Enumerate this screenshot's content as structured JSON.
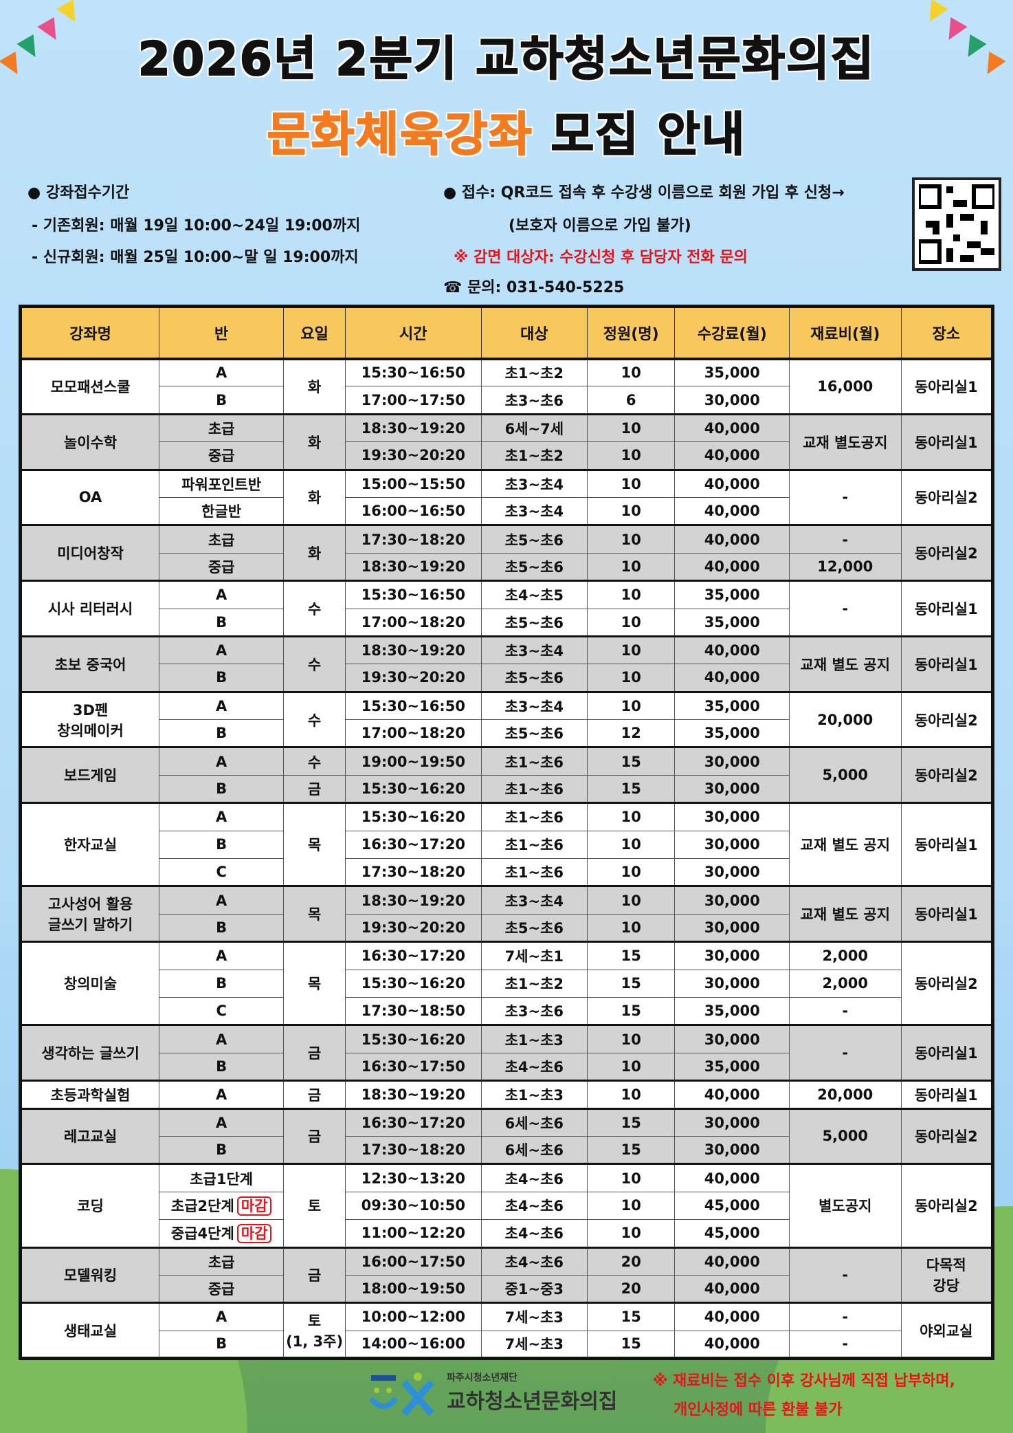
{
  "title": {
    "line1": "2026년 2분기 교하청소년문화의집",
    "highlight": "문화체육강좌",
    "rest": "모집 안내"
  },
  "info": {
    "period_heading": "● 강좌접수기간",
    "existing": "- 기존회원: 매월 19일 10:00~24일 19:00까지",
    "new": "- 신규회원: 매월 25일 10:00~말 일 19:00까지",
    "apply": "● 접수: QR코드 접속 후 수강생 이름으로 회원 가입 후 신청→",
    "apply_note": "(보호자 이름으로 가입 불가)",
    "discount": "※ 감면 대상자: 수강신청 후 담당자 전화 문의",
    "contact": "☎ 문의: 031-540-5225"
  },
  "colors": {
    "header": "#f8c85c",
    "gray_row": "#d3d3d3",
    "accent_orange": "#f47a20",
    "red": "#e8121b"
  },
  "table": {
    "headers": [
      "강좌명",
      "반",
      "요일",
      "시간",
      "대상",
      "정원(명)",
      "수강료(월)",
      "재료비(월)",
      "장소"
    ],
    "closed_label": "마감",
    "groups": [
      {
        "name": "모모패션스쿨",
        "day": "화",
        "material": "16,000",
        "place": "동아리실1",
        "rows": [
          [
            "A",
            "15:30~16:50",
            "초1~초2",
            "10",
            "35,000"
          ],
          [
            "B",
            "17:00~17:50",
            "초3~초6",
            "6",
            "30,000"
          ]
        ]
      },
      {
        "name": "놀이수학",
        "day": "화",
        "material": "교재 별도공지",
        "place": "동아리실1",
        "rows": [
          [
            "초급",
            "18:30~19:20",
            "6세~7세",
            "10",
            "40,000"
          ],
          [
            "중급",
            "19:30~20:20",
            "초1~초2",
            "10",
            "40,000"
          ]
        ]
      },
      {
        "name": "OA",
        "day": "화",
        "material": "-",
        "place": "동아리실2",
        "rows": [
          [
            "파워포인트반",
            "15:00~15:50",
            "초3~초4",
            "10",
            "40,000"
          ],
          [
            "한글반",
            "16:00~16:50",
            "초3~초4",
            "10",
            "40,000"
          ]
        ]
      },
      {
        "name": "미디어창작",
        "day": "화",
        "materials": [
          "-",
          "12,000"
        ],
        "place": "동아리실2",
        "rows": [
          [
            "초급",
            "17:30~18:20",
            "초5~초6",
            "10",
            "40,000"
          ],
          [
            "중급",
            "18:30~19:20",
            "초5~초6",
            "10",
            "40,000"
          ]
        ]
      },
      {
        "name": "시사 리터러시",
        "day": "수",
        "material": "-",
        "place": "동아리실1",
        "rows": [
          [
            "A",
            "15:30~16:50",
            "초4~초5",
            "10",
            "35,000"
          ],
          [
            "B",
            "17:00~18:20",
            "초5~초6",
            "10",
            "35,000"
          ]
        ]
      },
      {
        "name": "초보 중국어",
        "day": "수",
        "material": "교재 별도 공지",
        "place": "동아리실1",
        "rows": [
          [
            "A",
            "18:30~19:20",
            "초3~초4",
            "10",
            "40,000"
          ],
          [
            "B",
            "19:30~20:20",
            "초5~초6",
            "10",
            "40,000"
          ]
        ]
      },
      {
        "name": "3D펜\n창의메이커",
        "day": "수",
        "material": "20,000",
        "place": "동아리실2",
        "rows": [
          [
            "A",
            "15:30~16:50",
            "초3~초4",
            "10",
            "35,000"
          ],
          [
            "B",
            "17:00~18:20",
            "초5~초6",
            "12",
            "35,000"
          ]
        ]
      },
      {
        "name": "보드게임",
        "days": [
          "수",
          "금"
        ],
        "material": "5,000",
        "place": "동아리실2",
        "rows": [
          [
            "A",
            "19:00~19:50",
            "초1~초6",
            "15",
            "30,000"
          ],
          [
            "B",
            "15:30~16:20",
            "초1~초6",
            "15",
            "30,000"
          ]
        ]
      },
      {
        "name": "한자교실",
        "day": "목",
        "material": "교재 별도 공지",
        "place": "동아리실1",
        "rows": [
          [
            "A",
            "15:30~16:20",
            "초1~초6",
            "10",
            "30,000"
          ],
          [
            "B",
            "16:30~17:20",
            "초1~초6",
            "10",
            "30,000"
          ],
          [
            "C",
            "17:30~18:20",
            "초1~초6",
            "10",
            "30,000"
          ]
        ]
      },
      {
        "name": "고사성어 활용\n글쓰기 말하기",
        "day": "목",
        "material": "교재 별도 공지",
        "place": "동아리실1",
        "rows": [
          [
            "A",
            "18:30~19:20",
            "초3~초4",
            "10",
            "30,000"
          ],
          [
            "B",
            "19:30~20:20",
            "초5~초6",
            "10",
            "30,000"
          ]
        ]
      },
      {
        "name": "창의미술",
        "day": "목",
        "materials": [
          "2,000",
          "2,000",
          "-"
        ],
        "place": "동아리실2",
        "rows": [
          [
            "A",
            "16:30~17:20",
            "7세~초1",
            "15",
            "30,000"
          ],
          [
            "B",
            "15:30~16:20",
            "초1~초2",
            "15",
            "30,000"
          ],
          [
            "C",
            "17:30~18:50",
            "초3~초6",
            "15",
            "35,000"
          ]
        ]
      },
      {
        "name": "생각하는 글쓰기",
        "day": "금",
        "material": "-",
        "place": "동아리실1",
        "rows": [
          [
            "A",
            "15:30~16:20",
            "초1~초3",
            "10",
            "30,000"
          ],
          [
            "B",
            "16:30~17:50",
            "초4~초6",
            "10",
            "35,000"
          ]
        ]
      },
      {
        "name": "초등과학실험",
        "day": "금",
        "material": "20,000",
        "place": "동아리실1",
        "rows": [
          [
            "A",
            "18:30~19:20",
            "초1~초3",
            "10",
            "40,000"
          ]
        ]
      },
      {
        "name": "레고교실",
        "day": "금",
        "material": "5,000",
        "place": "동아리실2",
        "rows": [
          [
            "A",
            "16:30~17:20",
            "6세~초6",
            "15",
            "30,000"
          ],
          [
            "B",
            "17:30~18:20",
            "6세~초6",
            "15",
            "30,000"
          ]
        ]
      },
      {
        "name": "코딩",
        "day": "토",
        "material": "별도공지",
        "place": "동아리실2",
        "closed": [
          false,
          true,
          true
        ],
        "rows": [
          [
            "초급1단계",
            "12:30~13:20",
            "초4~초6",
            "10",
            "40,000"
          ],
          [
            "초급2단계",
            "09:30~10:50",
            "초4~초6",
            "10",
            "45,000"
          ],
          [
            "중급4단계",
            "11:00~12:20",
            "초4~초6",
            "10",
            "45,000"
          ]
        ]
      },
      {
        "name": "모델워킹",
        "day": "금",
        "material": "-",
        "place": "다목적\n강당",
        "rows": [
          [
            "초급",
            "16:00~17:50",
            "초4~초6",
            "20",
            "40,000"
          ],
          [
            "중급",
            "18:00~19:50",
            "중1~중3",
            "20",
            "40,000"
          ]
        ]
      },
      {
        "name": "생태교실",
        "day": "토\n(1, 3주)",
        "materials": [
          "-",
          "-"
        ],
        "place": "야외교실",
        "rows": [
          [
            "A",
            "10:00~12:00",
            "7세~초3",
            "15",
            "40,000"
          ],
          [
            "B",
            "14:00~16:00",
            "7세~초3",
            "15",
            "40,000"
          ]
        ]
      }
    ]
  },
  "footer": {
    "org_small": "파주시청소년재단",
    "org_name": "교하청소년문화의집",
    "note1": "※ 재료비는 접수 이후 강사님께 직접 납부하며,",
    "note2": "개인사정에 따른 환불 불가"
  }
}
